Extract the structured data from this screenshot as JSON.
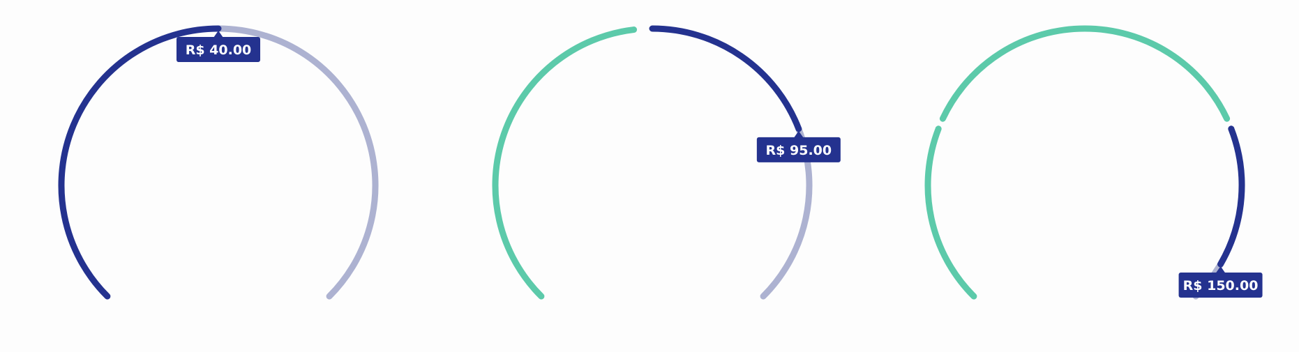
{
  "colors": {
    "value_arc": "#24328f",
    "track_arc": "#adb2d1",
    "range_arc": "#5ccaaa",
    "tooltip_bg": "#24328f",
    "tooltip_text": "#ffffff"
  },
  "sliders": [
    {
      "kind": "single-value",
      "value_fraction": 0.5,
      "label": "R$ 40.00"
    },
    {
      "kind": "range-bounded",
      "range_fraction": 0.475,
      "value_fraction": 0.755,
      "label": "R$ 95.00"
    },
    {
      "kind": "multi-range",
      "ranges": [
        {
          "start": 0.0,
          "end": 0.245
        },
        {
          "start": 0.26,
          "end": 0.74
        }
      ],
      "value_fraction": 0.945,
      "label": "R$ 150.00"
    }
  ]
}
